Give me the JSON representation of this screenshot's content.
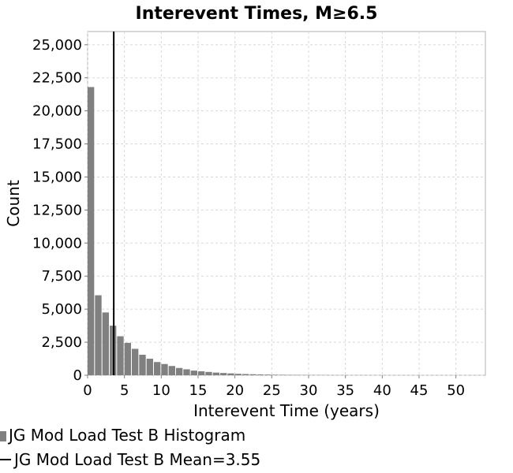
{
  "chart_data": {
    "type": "bar",
    "title": "Interevent Times, M≥6.5",
    "xlabel": "Interevent Time (years)",
    "ylabel": "Count",
    "xlim": [
      0,
      54
    ],
    "ylim": [
      0,
      26000
    ],
    "x_ticks": [
      0,
      5,
      10,
      15,
      20,
      25,
      30,
      35,
      40,
      45,
      50
    ],
    "x_tick_labels": [
      "0",
      "5",
      "10",
      "15",
      "20",
      "25",
      "30",
      "35",
      "40",
      "45",
      "50"
    ],
    "y_ticks": [
      0,
      2500,
      5000,
      7500,
      10000,
      12500,
      15000,
      17500,
      20000,
      22500,
      25000
    ],
    "y_tick_labels": [
      "0",
      "2,500",
      "5,000",
      "7,500",
      "10,000",
      "12,500",
      "15,000",
      "17,500",
      "20,000",
      "22,500",
      "25,000"
    ],
    "grid": true,
    "bin_width": 1,
    "bins_start": 0,
    "series": [
      {
        "name": "JG Mod Load Test B Histogram",
        "color": "#808080",
        "values": [
          21800,
          6050,
          4750,
          3750,
          2950,
          2450,
          2000,
          1550,
          1250,
          1000,
          850,
          700,
          550,
          450,
          350,
          300,
          250,
          200,
          170,
          140,
          110,
          90,
          75,
          60,
          50,
          40,
          35,
          30,
          25,
          20,
          17,
          14,
          12,
          10,
          8,
          7,
          6,
          5,
          4,
          4,
          3,
          3,
          2,
          2,
          2,
          1,
          1,
          1,
          1,
          1,
          1,
          1,
          1,
          1
        ]
      }
    ],
    "mean_line": {
      "name": "JG Mod Load Test B Mean=3.55",
      "value": 3.55,
      "color": "#000000"
    },
    "legend_position": "bottom-left"
  }
}
